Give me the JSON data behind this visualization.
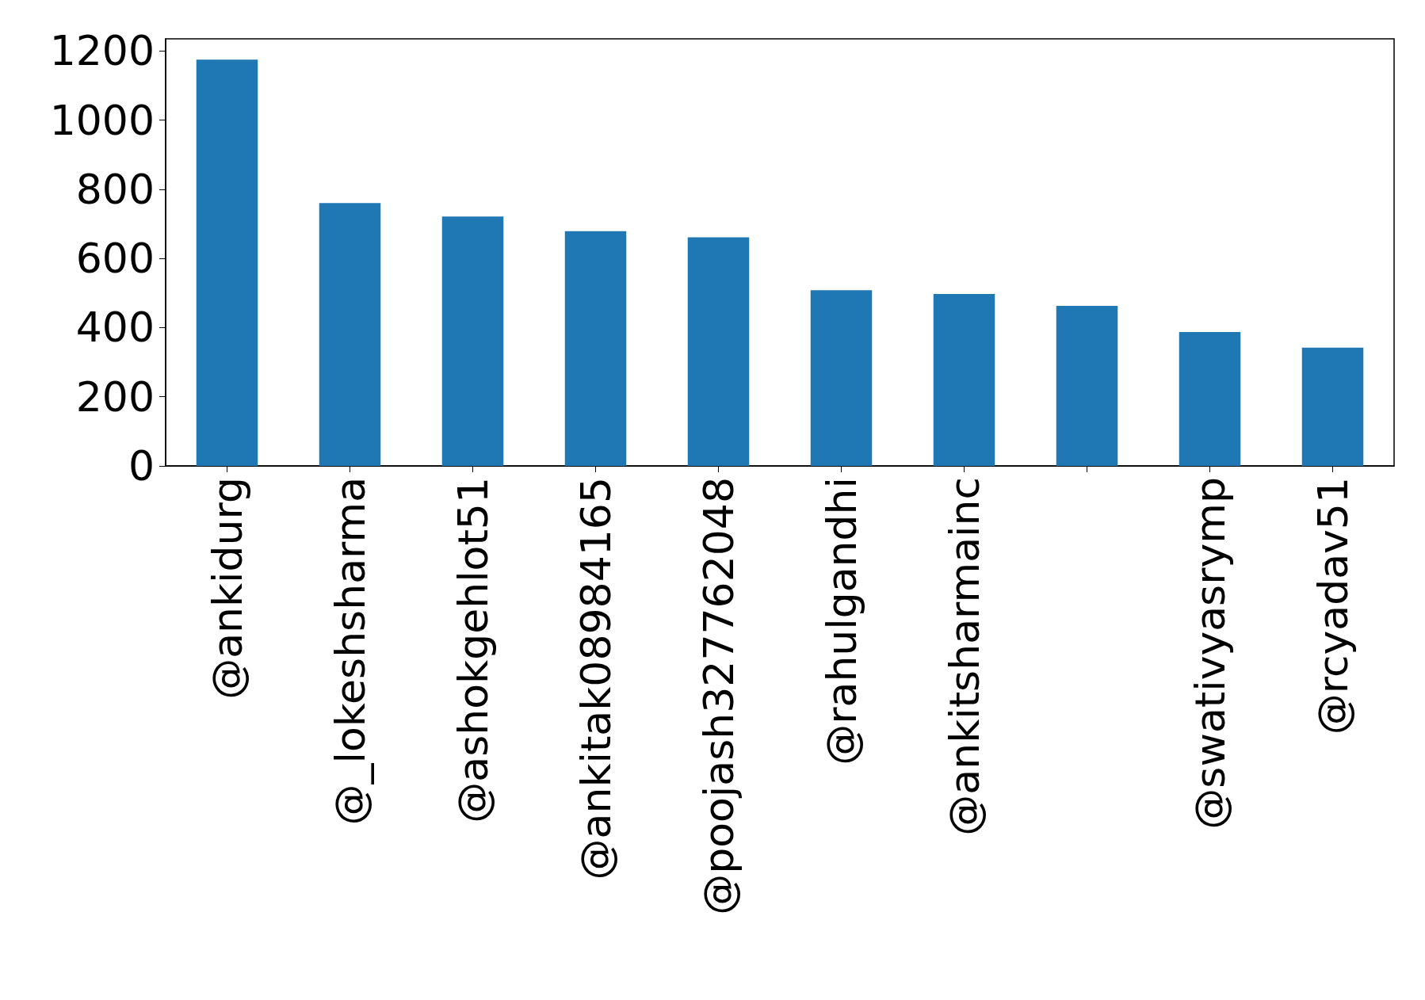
{
  "chart_data": {
    "type": "bar",
    "categories": [
      "@ankidurg",
      "@_lokeshsharma",
      "@ashokgehlot51",
      "@ankitak08984165",
      "@poojash327762048",
      "@rahulgandhi",
      "@ankitsharmainc",
      null,
      "@swativyasrymp",
      "@rcyadav51"
    ],
    "values": [
      1175,
      760,
      721,
      679,
      661,
      508,
      497,
      463,
      387,
      342
    ],
    "color": "#1f77b4",
    "ylim": [
      0,
      1235
    ],
    "yticks": [
      0,
      200,
      400,
      600,
      800,
      1000,
      1200
    ],
    "grid": false
  }
}
